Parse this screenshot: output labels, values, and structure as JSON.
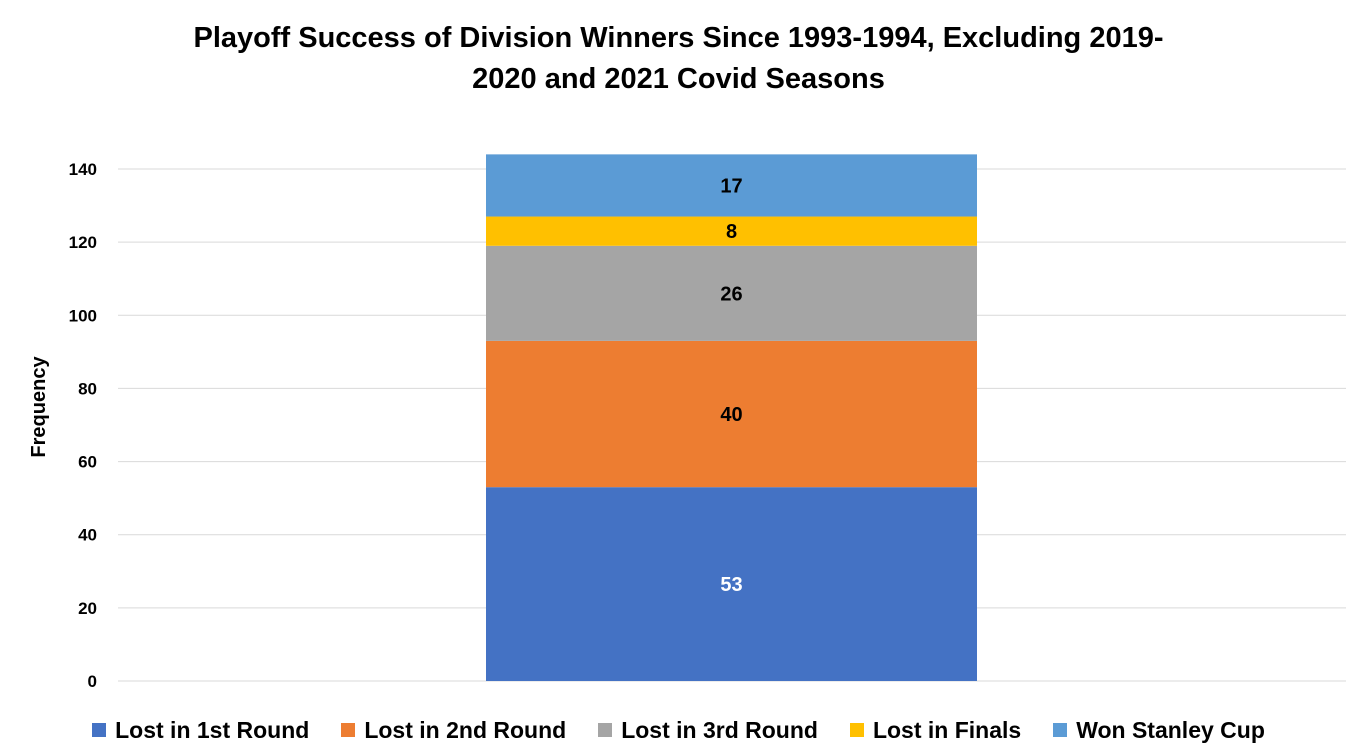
{
  "chart_data": {
    "type": "bar",
    "stacked": true,
    "title_lines": [
      "Playoff Success of Division Winners Since 1993-1994, Excluding 2019-",
      "2020 and 2021 Covid Seasons"
    ],
    "xlabel": "",
    "ylabel": "Frequency",
    "ylim": [
      0,
      140
    ],
    "yticks": [
      0,
      20,
      40,
      60,
      80,
      100,
      120,
      140
    ],
    "grid": true,
    "legend_position": "bottom",
    "categories": [
      ""
    ],
    "series": [
      {
        "name": "Lost in 1st Round",
        "values": [
          53
        ],
        "color": "#4472C4",
        "label_color": "#ffffff"
      },
      {
        "name": "Lost in 2nd Round",
        "values": [
          40
        ],
        "color": "#ED7D31",
        "label_color": "#000000"
      },
      {
        "name": "Lost in 3rd Round",
        "values": [
          26
        ],
        "color": "#A5A5A5",
        "label_color": "#000000"
      },
      {
        "name": "Lost in Finals",
        "values": [
          8
        ],
        "color": "#FFC000",
        "label_color": "#000000"
      },
      {
        "name": "Won Stanley Cup",
        "values": [
          17
        ],
        "color": "#5B9BD5",
        "label_color": "#000000"
      }
    ]
  }
}
